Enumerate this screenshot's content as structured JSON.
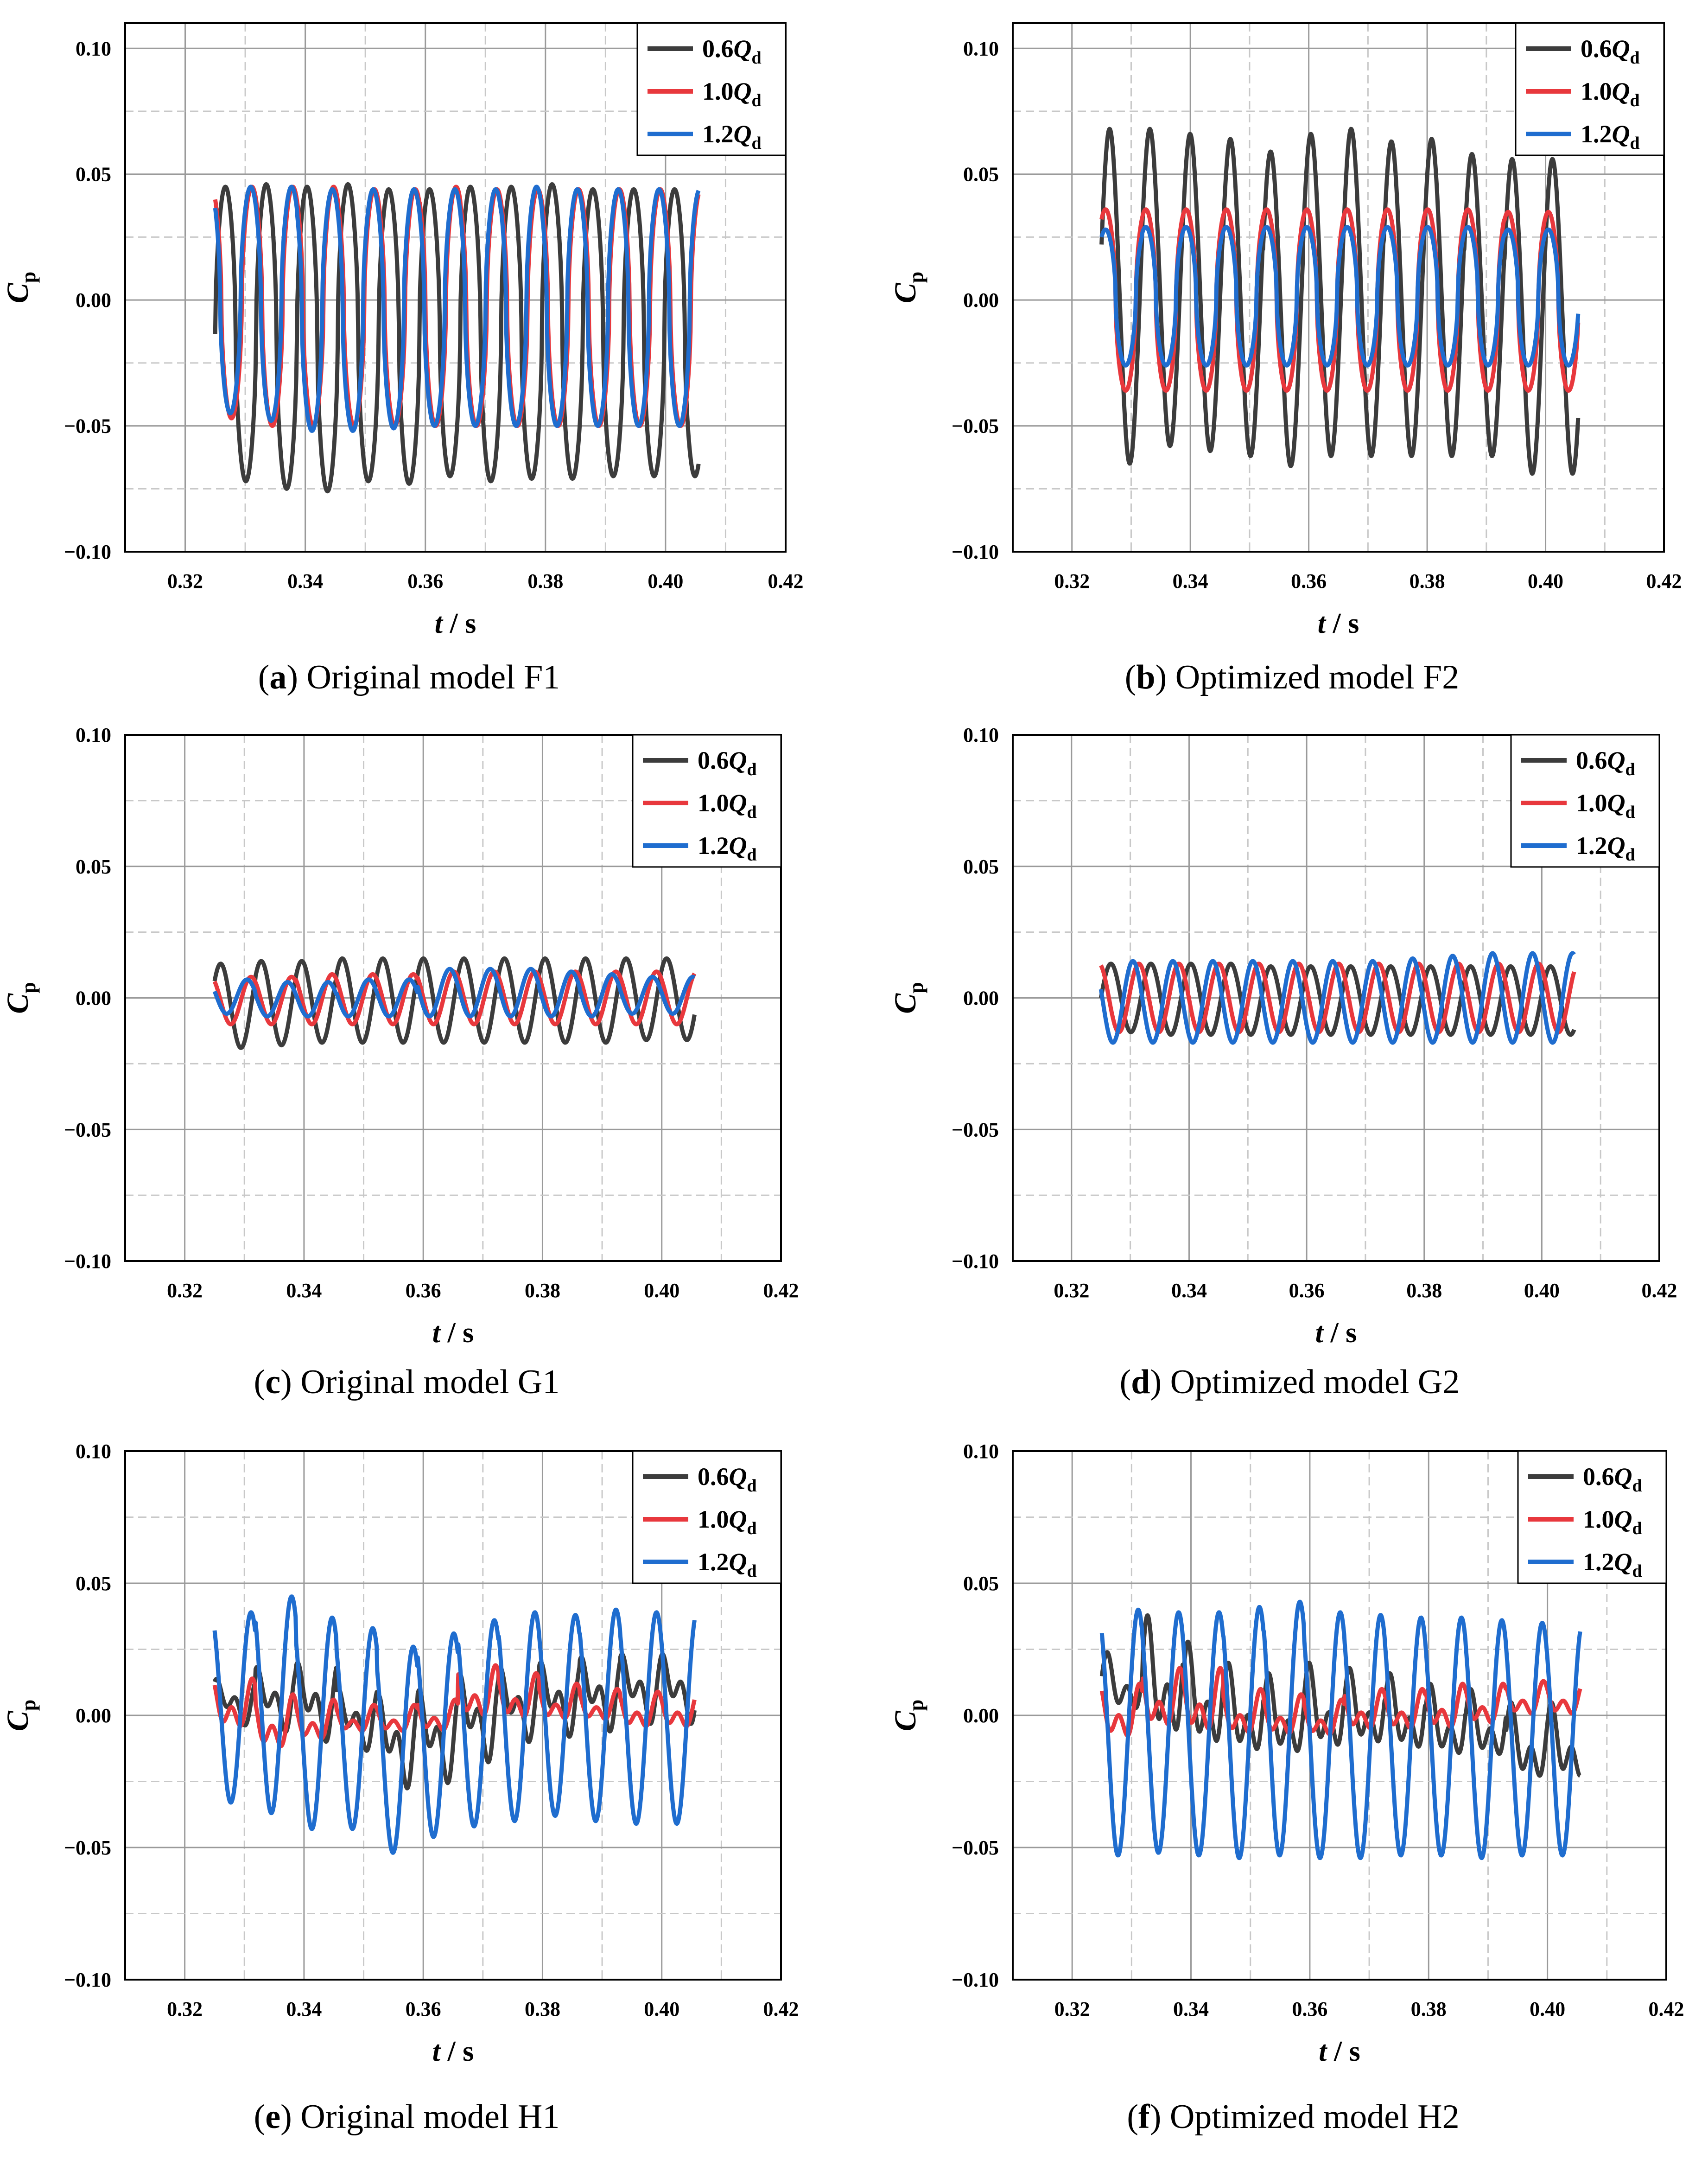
{
  "chart_data": [
    {
      "id": "a",
      "type": "line",
      "caption_label": "(a)",
      "caption_text": "Original model F1",
      "xlabel_var": "t",
      "xlabel_unit": "/ s",
      "ylabel_main": "C",
      "ylabel_sub": "p",
      "xlim": [
        0.31,
        0.42
      ],
      "ylim": [
        -0.1,
        0.11
      ],
      "xticks": [
        "0.32",
        "0.34",
        "0.36",
        "0.38",
        "0.40",
        "0.42"
      ],
      "yticks": [
        "−0.10",
        "−0.05",
        "0.00",
        "0.05",
        "0.10"
      ],
      "legend_position": "top-right",
      "series": [
        {
          "name_prefix": "0.6",
          "name_var": "Q",
          "name_sub": "d",
          "color": "#3c3c3c",
          "waves": [
            {
              "amp": 0.06,
              "phase": 0.0,
              "type": "sq"
            }
          ],
          "offset": -0.015,
          "end": 0.4055,
          "peaks": [
            0.045,
            0.046,
            0.045,
            0.046,
            0.044,
            0.044,
            0.045,
            0.045,
            0.046,
            0.044
          ],
          "troughs": [
            -0.072,
            -0.075,
            -0.076,
            -0.072,
            -0.073,
            -0.07,
            -0.072,
            -0.071,
            -0.071,
            -0.07,
            -0.066
          ]
        },
        {
          "name_prefix": "1.0",
          "name_var": "Q",
          "name_sub": "d",
          "color": "#e8383d",
          "waves": [
            {
              "amp": 0.048,
              "phase": 0.35,
              "type": "sq"
            }
          ],
          "offset": 0.0,
          "end": 0.4055,
          "peaks": [
            0.045,
            0.045,
            0.045,
            0.044,
            0.044,
            0.045,
            0.044,
            0.044,
            0.044,
            0.044
          ],
          "troughs": [
            -0.047,
            -0.05,
            -0.05,
            -0.05,
            -0.05,
            -0.05,
            -0.05,
            -0.05,
            -0.05,
            -0.05,
            -0.047
          ]
        },
        {
          "name_prefix": "1.2",
          "name_var": "Q",
          "name_sub": "d",
          "color": "#1f6dcf",
          "waves": [
            {
              "amp": 0.048,
              "phase": 0.38,
              "type": "sq"
            }
          ],
          "offset": 0.0,
          "end": 0.4055,
          "peaks": [
            0.045,
            0.045,
            0.044,
            0.044,
            0.044,
            0.044,
            0.044,
            0.045,
            0.044,
            0.044
          ],
          "troughs": [
            -0.045,
            -0.048,
            -0.052,
            -0.052,
            -0.051,
            -0.05,
            -0.05,
            -0.05,
            -0.05,
            -0.05,
            -0.048
          ]
        }
      ]
    },
    {
      "id": "b",
      "type": "line",
      "caption_label": "(b)",
      "caption_text": "Optimized model F2",
      "xlabel_var": "t",
      "xlabel_unit": "/ s",
      "ylabel_main": "C",
      "ylabel_sub": "p",
      "xlim": [
        0.31,
        0.42
      ],
      "ylim": [
        -0.1,
        0.11
      ],
      "xticks": [
        "0.32",
        "0.34",
        "0.36",
        "0.38",
        "0.40",
        "0.42"
      ],
      "yticks": [
        "−0.10",
        "−0.05",
        "0.00",
        "0.05",
        "0.10"
      ],
      "legend_position": "top-right",
      "series": [
        {
          "name_prefix": "0.6",
          "name_var": "Q",
          "name_sub": "d",
          "color": "#3c3c3c",
          "waves": [
            {
              "amp": 0.063,
              "phase": 0.05,
              "type": "sin"
            }
          ],
          "offset": 0.0,
          "end": 0.4055,
          "peaks": [
            0.068,
            0.068,
            0.066,
            0.064,
            0.059,
            0.066,
            0.068,
            0.063,
            0.064,
            0.058,
            0.056
          ],
          "troughs": [
            -0.065,
            -0.058,
            -0.06,
            -0.062,
            -0.066,
            -0.062,
            -0.062,
            -0.062,
            -0.062,
            -0.062,
            -0.069
          ]
        },
        {
          "name_prefix": "1.0",
          "name_var": "Q",
          "name_sub": "d",
          "color": "#e8383d",
          "waves": [
            {
              "amp": 0.036,
              "phase": 0.15,
              "type": "sq"
            }
          ],
          "offset": 0.0,
          "end": 0.4055,
          "peaks": [
            0.036,
            0.036,
            0.036,
            0.036,
            0.036,
            0.036,
            0.036,
            0.036,
            0.036,
            0.036,
            0.035
          ],
          "troughs": [
            -0.036,
            -0.036,
            -0.036,
            -0.036,
            -0.036,
            -0.036,
            -0.036,
            -0.036,
            -0.036,
            -0.036,
            -0.036
          ]
        },
        {
          "name_prefix": "1.2",
          "name_var": "Q",
          "name_sub": "d",
          "color": "#1f6dcf",
          "waves": [
            {
              "amp": 0.028,
              "phase": 0.15,
              "type": "sq"
            }
          ],
          "offset": 0.0,
          "end": 0.4055,
          "peaks": [
            0.028,
            0.029,
            0.029,
            0.029,
            0.029,
            0.029,
            0.029,
            0.029,
            0.029,
            0.029,
            0.028
          ],
          "troughs": [
            -0.026,
            -0.026,
            -0.026,
            -0.026,
            -0.026,
            -0.026,
            -0.026,
            -0.026,
            -0.026,
            -0.026,
            -0.026
          ]
        }
      ]
    },
    {
      "id": "c",
      "type": "line",
      "caption_label": "(c)",
      "caption_text": "Original model G1",
      "xlabel_var": "t",
      "xlabel_unit": "/ s",
      "ylabel_main": "C",
      "ylabel_sub": "p",
      "xlim": [
        0.31,
        0.42
      ],
      "ylim": [
        -0.1,
        0.1
      ],
      "xticks": [
        "0.32",
        "0.34",
        "0.36",
        "0.38",
        "0.40",
        "0.42"
      ],
      "yticks": [
        "−0.10",
        "−0.05",
        "0.00",
        "0.05",
        "0.10"
      ],
      "legend_position": "top-right",
      "series": [
        {
          "name_prefix": "0.6",
          "name_var": "Q",
          "name_sub": "d",
          "color": "#3c3c3c",
          "waves": [
            {
              "amp": 0.016,
              "phase": 0.1,
              "type": "sin"
            }
          ],
          "offset": 0.0,
          "end": 0.4055,
          "peaks": [
            0.013,
            0.014,
            0.014,
            0.015,
            0.015,
            0.015,
            0.015,
            0.015,
            0.015,
            0.015,
            0.015
          ],
          "troughs": [
            -0.019,
            -0.018,
            -0.017,
            -0.017,
            -0.017,
            -0.017,
            -0.017,
            -0.017,
            -0.017,
            -0.017,
            -0.016
          ]
        },
        {
          "name_prefix": "1.0",
          "name_var": "Q",
          "name_sub": "d",
          "color": "#e8383d",
          "waves": [
            {
              "amp": 0.01,
              "phase": 0.35,
              "type": "sin"
            }
          ],
          "offset": 0.0,
          "end": 0.4055,
          "peaks": [
            0.008,
            0.008,
            0.009,
            0.009,
            0.009,
            0.01,
            0.01,
            0.01,
            0.01,
            0.01,
            0.01
          ],
          "troughs": [
            -0.01,
            -0.01,
            -0.01,
            -0.01,
            -0.01,
            -0.01,
            -0.01,
            -0.01,
            -0.01,
            -0.01,
            -0.01
          ]
        },
        {
          "name_prefix": "1.2",
          "name_var": "Q",
          "name_sub": "d",
          "color": "#1f6dcf",
          "waves": [
            {
              "amp": 0.007,
              "phase": 0.45,
              "type": "sin"
            }
          ],
          "offset": 0.0,
          "end": 0.4055,
          "peaks": [
            0.007,
            0.006,
            0.006,
            0.007,
            0.007,
            0.011,
            0.011,
            0.011,
            0.01,
            0.009,
            0.008
          ],
          "troughs": [
            -0.006,
            -0.007,
            -0.007,
            -0.007,
            -0.007,
            -0.007,
            -0.007,
            -0.007,
            -0.007,
            -0.007,
            -0.006
          ]
        }
      ]
    },
    {
      "id": "d",
      "type": "line",
      "caption_label": "(d)",
      "caption_text": "Optimized model G2",
      "xlabel_var": "t",
      "xlabel_unit": "/ s",
      "ylabel_main": "C",
      "ylabel_sub": "p",
      "xlim": [
        0.31,
        0.42
      ],
      "ylim": [
        -0.1,
        0.1
      ],
      "xticks": [
        "0.32",
        "0.34",
        "0.36",
        "0.38",
        "0.40",
        "0.42"
      ],
      "yticks": [
        "−0.10",
        "−0.05",
        "0.00",
        "0.05",
        "0.10"
      ],
      "legend_position": "top-right",
      "series": [
        {
          "name_prefix": "0.6",
          "name_var": "Q",
          "name_sub": "d",
          "color": "#3c3c3c",
          "waves": [
            {
              "amp": 0.013,
              "phase": 0.0,
              "type": "sin"
            }
          ],
          "offset": 0.0,
          "end": 0.4055,
          "peaks": [
            0.013,
            0.013,
            0.013,
            0.013,
            0.012,
            0.012,
            0.012,
            0.012,
            0.012,
            0.012,
            0.012
          ],
          "troughs": [
            -0.013,
            -0.014,
            -0.014,
            -0.014,
            -0.014,
            -0.014,
            -0.014,
            -0.014,
            -0.014,
            -0.014,
            -0.014
          ]
        },
        {
          "name_prefix": "1.0",
          "name_var": "Q",
          "name_sub": "d",
          "color": "#e8383d",
          "waves": [
            {
              "amp": 0.013,
              "phase": 0.3,
              "type": "sin"
            }
          ],
          "offset": 0.0,
          "end": 0.4055,
          "peaks": [
            0.013,
            0.013,
            0.013,
            0.013,
            0.013,
            0.013,
            0.013,
            0.013,
            0.013,
            0.013,
            0.013
          ],
          "troughs": [
            -0.013,
            -0.013,
            -0.013,
            -0.013,
            -0.013,
            -0.013,
            -0.013,
            -0.013,
            -0.013,
            -0.013,
            -0.013
          ]
        },
        {
          "name_prefix": "1.2",
          "name_var": "Q",
          "name_sub": "d",
          "color": "#1f6dcf",
          "waves": [
            {
              "amp": 0.016,
              "phase": 0.45,
              "type": "sin"
            }
          ],
          "offset": 0.0,
          "end": 0.4055,
          "peaks": [
            0.014,
            0.014,
            0.014,
            0.014,
            0.014,
            0.014,
            0.014,
            0.015,
            0.016,
            0.017,
            0.017
          ],
          "troughs": [
            -0.017,
            -0.017,
            -0.017,
            -0.017,
            -0.017,
            -0.017,
            -0.017,
            -0.017,
            -0.017,
            -0.017,
            -0.017
          ]
        }
      ]
    },
    {
      "id": "e",
      "type": "line",
      "caption_label": "(e)",
      "caption_text": "Original model H1",
      "xlabel_var": "t",
      "xlabel_unit": "/ s",
      "ylabel_main": "C",
      "ylabel_sub": "p",
      "xlim": [
        0.31,
        0.42
      ],
      "ylim": [
        -0.1,
        0.1
      ],
      "xticks": [
        "0.32",
        "0.34",
        "0.36",
        "0.38",
        "0.40",
        "0.42"
      ],
      "yticks": [
        "−0.10",
        "−0.05",
        "0.00",
        "0.05",
        "0.10"
      ],
      "legend_position": "top-right",
      "series": [
        {
          "name_prefix": "0.6",
          "name_var": "Q",
          "name_sub": "d",
          "color": "#3c3c3c",
          "waves": [
            {
              "amp": 0.01,
              "phase": 0.1,
              "type": "sin"
            },
            {
              "amp": 0.007,
              "phase": 0.6,
              "type": "sin2"
            }
          ],
          "offset": 0.0,
          "end": 0.4055,
          "peaks": [
            0.015,
            0.02,
            0.022,
            0.012,
            0.01,
            0.012,
            0.018,
            0.02,
            0.022,
            0.024,
            0.025
          ],
          "troughs": [
            -0.005,
            -0.008,
            -0.012,
            -0.015,
            -0.03,
            -0.028,
            -0.02,
            -0.012,
            -0.01,
            -0.008,
            -0.005
          ]
        },
        {
          "name_prefix": "1.0",
          "name_var": "Q",
          "name_sub": "d",
          "color": "#e8383d",
          "waves": [
            {
              "amp": 0.008,
              "phase": 0.3,
              "type": "sin"
            },
            {
              "amp": 0.004,
              "phase": 0.2,
              "type": "sin2"
            }
          ],
          "offset": 0.0,
          "end": 0.4055,
          "peaks": [
            0.014,
            0.008,
            0.006,
            0.004,
            0.004,
            0.006,
            0.019,
            0.016,
            0.012,
            0.01,
            0.009
          ],
          "troughs": [
            -0.008,
            -0.016,
            -0.012,
            -0.008,
            -0.008,
            -0.008,
            -0.004,
            -0.004,
            -0.004,
            -0.004,
            -0.007
          ]
        },
        {
          "name_prefix": "1.2",
          "name_var": "Q",
          "name_sub": "d",
          "color": "#1f6dcf",
          "waves": [
            {
              "amp": 0.04,
              "phase": 0.35,
              "type": "sin"
            }
          ],
          "offset": 0.0,
          "end": 0.4055,
          "peaks": [
            0.039,
            0.045,
            0.037,
            0.033,
            0.026,
            0.031,
            0.036,
            0.039,
            0.038,
            0.04,
            0.039
          ],
          "troughs": [
            -0.033,
            -0.037,
            -0.043,
            -0.043,
            -0.052,
            -0.046,
            -0.042,
            -0.04,
            -0.038,
            -0.04,
            -0.041
          ]
        }
      ]
    },
    {
      "id": "f",
      "type": "line",
      "caption_label": "(f)",
      "caption_text": "Optimized model H2",
      "xlabel_var": "t",
      "xlabel_unit": "/ s",
      "ylabel_main": "C",
      "ylabel_sub": "p",
      "xlim": [
        0.31,
        0.42
      ],
      "ylim": [
        -0.1,
        0.1
      ],
      "xticks": [
        "0.32",
        "0.34",
        "0.36",
        "0.38",
        "0.40",
        "0.42"
      ],
      "yticks": [
        "−0.10",
        "−0.05",
        "0.00",
        "0.05",
        "0.10"
      ],
      "legend_position": "top-right",
      "series": [
        {
          "name_prefix": "0.6",
          "name_var": "Q",
          "name_sub": "d",
          "color": "#3c3c3c",
          "waves": [
            {
              "amp": 0.012,
              "phase": 0.1,
              "type": "sin"
            },
            {
              "amp": 0.008,
              "phase": 0.5,
              "type": "sin2"
            }
          ],
          "offset": 0.0,
          "end": 0.4055,
          "peaks": [
            0.024,
            0.038,
            0.028,
            0.02,
            0.016,
            0.02,
            0.018,
            0.016,
            0.012,
            0.01,
            0.005
          ],
          "troughs": [
            -0.002,
            -0.015,
            -0.018,
            -0.02,
            -0.02,
            -0.018,
            -0.016,
            -0.018,
            -0.02,
            -0.02,
            -0.029
          ]
        },
        {
          "name_prefix": "1.0",
          "name_var": "Q",
          "name_sub": "d",
          "color": "#e8383d",
          "waves": [
            {
              "amp": 0.008,
              "phase": 0.3,
              "type": "sin"
            },
            {
              "amp": 0.004,
              "phase": 0.2,
              "type": "sin2"
            }
          ],
          "offset": 0.0,
          "end": 0.4055,
          "peaks": [
            0.012,
            0.018,
            0.018,
            0.01,
            0.008,
            0.006,
            0.01,
            0.01,
            0.012,
            0.012,
            0.013
          ],
          "troughs": [
            -0.012,
            -0.008,
            -0.01,
            -0.01,
            -0.01,
            -0.01,
            -0.008,
            -0.008,
            -0.008,
            -0.006,
            -0.002
          ]
        },
        {
          "name_prefix": "1.2",
          "name_var": "Q",
          "name_sub": "d",
          "color": "#1f6dcf",
          "waves": [
            {
              "amp": 0.045,
              "phase": 0.35,
              "type": "sin"
            }
          ],
          "offset": -0.005,
          "end": 0.4055,
          "peaks": [
            0.04,
            0.039,
            0.039,
            0.041,
            0.043,
            0.039,
            0.038,
            0.037,
            0.037,
            0.036,
            0.035
          ],
          "troughs": [
            -0.053,
            -0.052,
            -0.053,
            -0.054,
            -0.053,
            -0.054,
            -0.054,
            -0.053,
            -0.053,
            -0.054,
            -0.053
          ]
        }
      ]
    }
  ]
}
